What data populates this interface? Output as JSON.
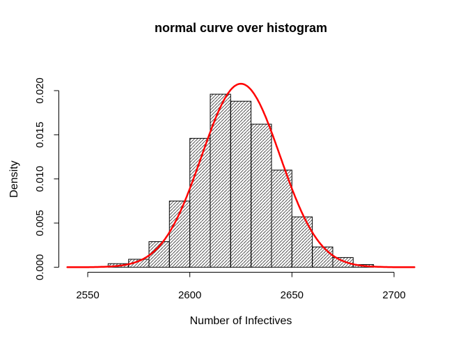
{
  "chart_data": {
    "type": "bar",
    "subtype": "histogram-with-normal-curve-overlay",
    "title": "normal curve over histogram",
    "xlabel": "Number of Infectives",
    "ylabel": "Density",
    "bin_breaks": [
      2560,
      2570,
      2580,
      2590,
      2600,
      2610,
      2620,
      2630,
      2640,
      2650,
      2660,
      2670,
      2680,
      2690
    ],
    "bin_densities": [
      0.0004,
      0.0009,
      0.0029,
      0.0075,
      0.0146,
      0.0196,
      0.0188,
      0.0162,
      0.011,
      0.0057,
      0.0023,
      0.0011,
      0.0003
    ],
    "x_tick_values": [
      2550,
      2600,
      2650,
      2700
    ],
    "x_tick_labels": [
      "2550",
      "2600",
      "2650",
      "2700"
    ],
    "y_tick_values": [
      0,
      0.005,
      0.01,
      0.015,
      0.02
    ],
    "y_tick_labels": [
      "0.000",
      "0.005",
      "0.010",
      "0.015",
      "0.020"
    ],
    "xlim": [
      2540,
      2710
    ],
    "ylim": [
      0,
      0.0208
    ],
    "grid": false,
    "legend": false,
    "normal_curve": {
      "mean": 2625,
      "sd": 19.2,
      "x_start": 2540,
      "x_end": 2710,
      "color": "#ff0000",
      "line_width": 2.5
    },
    "bar_style": {
      "fill": "hatched-diagonal-45deg",
      "hatch_color": "#000000",
      "border_color": "#000000",
      "background": "#ffffff"
    },
    "colors": {
      "axis": "#000000",
      "text": "#000000",
      "background": "#ffffff",
      "curve": "#ff0000"
    }
  }
}
